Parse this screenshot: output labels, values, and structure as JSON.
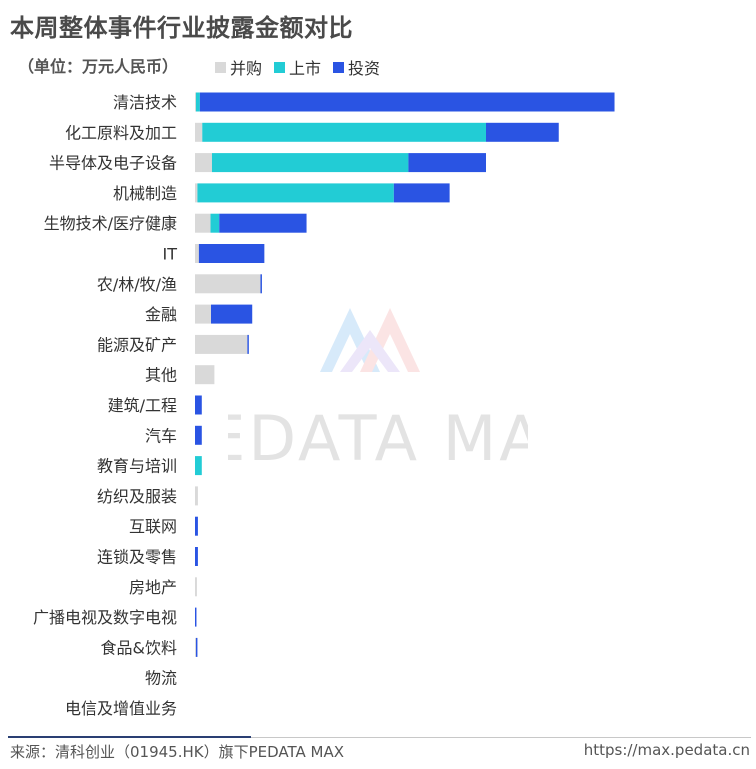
{
  "title": "本周整体事件行业披露金额对比",
  "unit": "（单位：万元人民币）",
  "legend": [
    {
      "name": "并购",
      "color": "#d9d9d9"
    },
    {
      "name": "上市",
      "color": "#22ccd5"
    },
    {
      "name": "投资",
      "color": "#2a54e3"
    }
  ],
  "watermark": "PEDATA MAX",
  "footer": {
    "source": "来源：清科创业（01945.HK）旗下PEDATA MAX",
    "url": "https://max.pedata.cn"
  },
  "chart_data": {
    "type": "bar",
    "orientation": "horizontal",
    "stacked": true,
    "grid": false,
    "categories": [
      "清洁技术",
      "化工原料及加工",
      "半导体及电子设备",
      "机械制造",
      "生物技术/医疗健康",
      "IT",
      "农/林/牧/渔",
      "金融",
      "能源及矿产",
      "其他",
      "建筑/工程",
      "汽车",
      "教育与培训",
      "纺织及服装",
      "互联网",
      "连锁及零售",
      "房地产",
      "广播电视及数字电视",
      "食品&饮料",
      "物流",
      "电信及增值业务"
    ],
    "series": [
      {
        "name": "并购",
        "color": "#d9d9d9",
        "values": [
          0.2,
          1.5,
          3.5,
          0.5,
          3.2,
          0.8,
          13.5,
          3.3,
          10.8,
          4.0,
          0,
          0,
          0,
          0.6,
          0,
          0,
          0.4,
          0,
          0.2,
          0,
          0
        ]
      },
      {
        "name": "上市",
        "color": "#22ccd5",
        "values": [
          0.8,
          58.5,
          40.5,
          40.5,
          1.8,
          0,
          0,
          0,
          0,
          0,
          0,
          0,
          1.4,
          0,
          0,
          0,
          0,
          0,
          0,
          0,
          0
        ]
      },
      {
        "name": "投资",
        "color": "#2a54e3",
        "values": [
          85.5,
          15.0,
          16.0,
          11.5,
          18.0,
          13.5,
          0.3,
          8.5,
          0.3,
          0,
          1.4,
          1.4,
          0,
          0,
          0.6,
          0.6,
          0,
          0.3,
          0.3,
          0,
          0
        ]
      }
    ]
  }
}
